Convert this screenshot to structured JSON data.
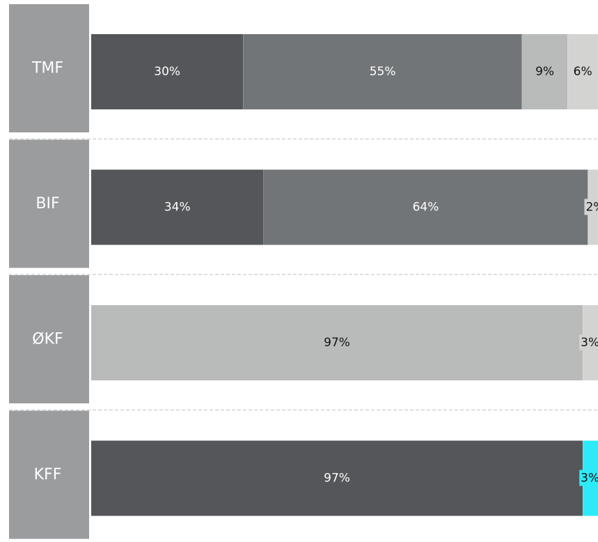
{
  "chart_data": {
    "type": "bar",
    "orientation": "horizontal",
    "stacked": "percent",
    "categories": [
      "TMF",
      "BIF",
      "ØKF",
      "KFF"
    ],
    "series": [
      {
        "color": "#545659",
        "values": [
          30,
          34,
          0,
          97
        ]
      },
      {
        "color": "#727577",
        "values": [
          55,
          64,
          0,
          0
        ]
      },
      {
        "color": "#b9bbba",
        "values": [
          9,
          0,
          97,
          0
        ]
      },
      {
        "color": "#d3d3d1",
        "values": [
          6,
          2,
          3,
          0
        ]
      },
      {
        "color": "#2eeaf8",
        "values": [
          0.5,
          0.3,
          0,
          3
        ]
      }
    ],
    "segment_labels": [
      [
        "30%",
        "55%",
        "9%",
        "6%",
        ""
      ],
      [
        "34%",
        "64%",
        "",
        "2%",
        ""
      ],
      [
        "",
        "",
        "97%",
        "3%",
        ""
      ],
      [
        "97%",
        "",
        "",
        "",
        "3%"
      ]
    ],
    "xlim": [
      0,
      100
    ],
    "grid": false,
    "legend": "none"
  },
  "colors": {
    "category_band": "#9b9c9e",
    "separator": "#cccccc"
  }
}
